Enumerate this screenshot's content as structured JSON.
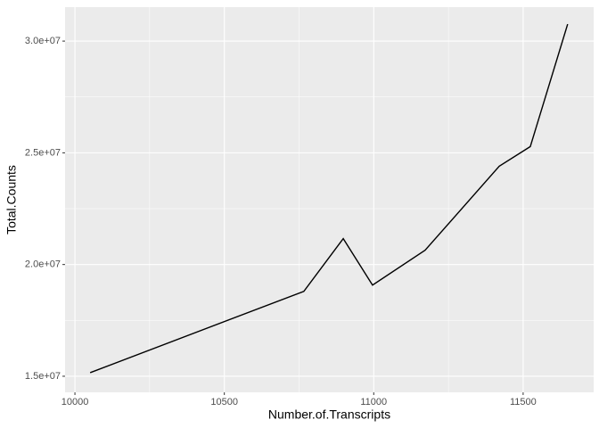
{
  "chart_data": {
    "type": "line",
    "x_label": "Number.of.Transcripts",
    "y_label": "Total.Counts",
    "x": [
      10051,
      10766,
      10898,
      10996,
      11172,
      11420,
      11524,
      11649
    ],
    "series": [
      {
        "color": "#000000",
        "values": [
          15160000,
          18800000,
          21160000,
          19080000,
          20640000,
          24400000,
          25280000,
          30760000
        ]
      }
    ],
    "xlim": [
      9967,
      11736
    ],
    "ylim": [
      14280000,
      31520000
    ],
    "xticks": [
      10000,
      10500,
      11000,
      11500
    ],
    "yticks": [
      {
        "value": 15000000,
        "label": "1.5e+07"
      },
      {
        "value": 20000000,
        "label": "2.0e+07"
      },
      {
        "value": 25000000,
        "label": "2.5e+07"
      },
      {
        "value": 30000000,
        "label": "3.0e+07"
      }
    ],
    "grid": true
  }
}
